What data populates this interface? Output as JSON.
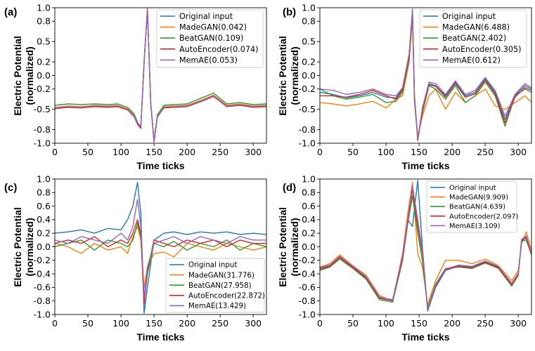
{
  "series_colors": {
    "Original input": "#1f77b4",
    "MadeGAN": "#ff7f0e",
    "BeatGAN": "#2ca02c",
    "AutoEncoder": "#d62728",
    "MemAE": "#9467bd"
  },
  "chart_data": [
    {
      "type": "line",
      "panel_label": "(a)",
      "xlabel": "Time ticks",
      "ylabel_line1": "Electric Potential",
      "ylabel_line2": "(normalized)",
      "xlim": [
        0,
        320
      ],
      "ylim": [
        -1.0,
        1.0
      ],
      "xticks": [
        0,
        50,
        100,
        150,
        200,
        250,
        300
      ],
      "yticks": [
        -1.0,
        -0.8,
        -0.5,
        -0.2,
        0.0,
        0.2,
        0.5,
        0.8,
        1.0
      ],
      "ytick_labels": [
        "-1.0",
        "-0.8",
        "-0.5",
        "-0.2",
        "0.0",
        "0.2",
        "0.5",
        "0.8",
        "1.0"
      ],
      "legend_position": "top-right",
      "x": [
        0,
        20,
        40,
        60,
        80,
        95,
        110,
        120,
        125,
        130,
        135,
        140,
        145,
        150,
        155,
        165,
        180,
        200,
        220,
        240,
        260,
        280,
        300,
        320
      ],
      "series": [
        {
          "name": "Original input",
          "label": "Original input",
          "values": [
            -0.48,
            -0.46,
            -0.47,
            -0.45,
            -0.46,
            -0.45,
            -0.5,
            -0.6,
            -0.7,
            -0.75,
            0.2,
            0.98,
            -0.4,
            -0.97,
            -0.6,
            -0.47,
            -0.46,
            -0.45,
            -0.38,
            -0.3,
            -0.45,
            -0.43,
            -0.46,
            -0.45
          ]
        },
        {
          "name": "MadeGAN",
          "label": "MadeGAN(0.042)",
          "values": [
            -0.47,
            -0.45,
            -0.46,
            -0.44,
            -0.45,
            -0.44,
            -0.49,
            -0.59,
            -0.71,
            -0.76,
            0.21,
            0.99,
            -0.39,
            -0.98,
            -0.62,
            -0.46,
            -0.45,
            -0.44,
            -0.37,
            -0.29,
            -0.44,
            -0.42,
            -0.45,
            -0.44
          ]
        },
        {
          "name": "BeatGAN",
          "label": "BeatGAN(0.109)",
          "values": [
            -0.44,
            -0.42,
            -0.43,
            -0.42,
            -0.43,
            -0.42,
            -0.47,
            -0.57,
            -0.69,
            -0.77,
            0.19,
            0.97,
            -0.42,
            -0.96,
            -0.58,
            -0.44,
            -0.43,
            -0.42,
            -0.34,
            -0.26,
            -0.42,
            -0.4,
            -0.43,
            -0.42
          ]
        },
        {
          "name": "AutoEncoder",
          "label": "AutoEncoder(0.074)",
          "values": [
            -0.49,
            -0.47,
            -0.48,
            -0.46,
            -0.47,
            -0.46,
            -0.51,
            -0.61,
            -0.72,
            -0.78,
            0.2,
            0.98,
            -0.41,
            -0.98,
            -0.61,
            -0.48,
            -0.47,
            -0.46,
            -0.39,
            -0.31,
            -0.46,
            -0.44,
            -0.47,
            -0.46
          ]
        },
        {
          "name": "MemAE",
          "label": "MemAE(0.053)",
          "values": [
            -0.48,
            -0.46,
            -0.47,
            -0.45,
            -0.46,
            -0.45,
            -0.5,
            -0.6,
            -0.7,
            -0.76,
            0.2,
            0.98,
            -0.4,
            -0.97,
            -0.6,
            -0.47,
            -0.46,
            -0.45,
            -0.38,
            -0.3,
            -0.45,
            -0.43,
            -0.46,
            -0.45
          ]
        }
      ]
    },
    {
      "type": "line",
      "panel_label": "(b)",
      "xlabel": "Time ticks",
      "ylabel_line1": "Electric Potential",
      "ylabel_line2": "(normalized)",
      "xlim": [
        0,
        320
      ],
      "ylim": [
        -1.0,
        1.0
      ],
      "xticks": [
        0,
        50,
        100,
        150,
        200,
        250,
        300
      ],
      "yticks": [
        -1.0,
        -0.8,
        -0.5,
        -0.2,
        0.0,
        0.2,
        0.5,
        0.8,
        1.0
      ],
      "ytick_labels": [
        "-1.0",
        "-0.8",
        "-0.5",
        "-0.2",
        "0.0",
        "0.2",
        "0.5",
        "0.8",
        "1.0"
      ],
      "legend_position": "top-right",
      "x": [
        0,
        20,
        40,
        60,
        80,
        100,
        115,
        125,
        135,
        140,
        143,
        148,
        155,
        165,
        175,
        190,
        205,
        220,
        235,
        250,
        265,
        280,
        295,
        310,
        320
      ],
      "series": [
        {
          "name": "Original input",
          "label": "Original input",
          "values": [
            -0.25,
            -0.28,
            -0.33,
            -0.3,
            -0.25,
            -0.32,
            -0.33,
            -0.2,
            0.3,
            0.98,
            -0.3,
            -0.95,
            -0.5,
            -0.12,
            -0.15,
            -0.3,
            -0.1,
            -0.3,
            -0.25,
            -0.05,
            -0.25,
            -0.65,
            -0.3,
            -0.15,
            -0.2
          ]
        },
        {
          "name": "MadeGAN",
          "label": "MadeGAN(6.488)",
          "values": [
            -0.4,
            -0.42,
            -0.45,
            -0.42,
            -0.38,
            -0.48,
            -0.35,
            -0.3,
            0.2,
            0.85,
            -0.4,
            -0.9,
            -0.6,
            -0.3,
            -0.2,
            -0.5,
            -0.25,
            -0.4,
            -0.3,
            -0.2,
            -0.45,
            -0.5,
            -0.4,
            -0.3,
            -0.4
          ]
        },
        {
          "name": "BeatGAN",
          "label": "BeatGAN(2.402)",
          "values": [
            -0.2,
            -0.3,
            -0.35,
            -0.32,
            -0.28,
            -0.4,
            -0.38,
            -0.25,
            0.25,
            0.9,
            -0.35,
            -0.92,
            -0.55,
            -0.15,
            -0.2,
            -0.35,
            -0.15,
            -0.4,
            -0.3,
            -0.1,
            -0.3,
            -0.75,
            -0.3,
            -0.2,
            -0.25
          ]
        },
        {
          "name": "AutoEncoder",
          "label": "AutoEncoder(0.305)",
          "values": [
            -0.3,
            -0.3,
            -0.32,
            -0.28,
            -0.22,
            -0.3,
            -0.35,
            -0.22,
            0.28,
            0.95,
            -0.32,
            -0.96,
            -0.52,
            -0.14,
            -0.16,
            -0.32,
            -0.12,
            -0.32,
            -0.27,
            -0.07,
            -0.27,
            -0.7,
            -0.32,
            -0.18,
            -0.22
          ]
        },
        {
          "name": "MemAE",
          "label": "MemAE(0.612)",
          "values": [
            -0.2,
            -0.22,
            -0.28,
            -0.25,
            -0.2,
            -0.28,
            -0.3,
            -0.18,
            0.32,
            0.97,
            -0.28,
            -0.93,
            -0.48,
            -0.1,
            -0.12,
            -0.28,
            -0.08,
            -0.28,
            -0.22,
            -0.03,
            -0.22,
            -0.6,
            -0.28,
            -0.12,
            -0.18
          ]
        }
      ]
    },
    {
      "type": "line",
      "panel_label": "(c)",
      "xlabel": "Time ticks",
      "ylabel_line1": "Electric Potential",
      "ylabel_line2": "(normalized)",
      "xlim": [
        0,
        320
      ],
      "ylim": [
        -1.0,
        1.0
      ],
      "xticks": [
        0,
        50,
        100,
        150,
        200,
        250,
        300
      ],
      "yticks": [
        -1.0,
        -0.8,
        -0.6,
        -0.4,
        -0.2,
        0.0,
        0.2,
        0.4,
        0.6,
        0.8,
        1.0
      ],
      "ytick_labels": [
        "-1.0",
        "-0.8",
        "-0.6",
        "-0.4",
        "-0.2",
        "0.0",
        "0.2",
        "0.4",
        "0.6",
        "0.8",
        "1.0"
      ],
      "legend_position": "bottom-right",
      "x": [
        0,
        20,
        40,
        60,
        80,
        100,
        110,
        118,
        125,
        130,
        135,
        140,
        150,
        165,
        180,
        200,
        220,
        240,
        260,
        280,
        300,
        320
      ],
      "series": [
        {
          "name": "Original input",
          "label": "Original input",
          "values": [
            0.2,
            0.22,
            0.25,
            0.2,
            0.27,
            0.25,
            0.4,
            0.6,
            0.95,
            0.5,
            -0.98,
            -0.6,
            0.1,
            0.2,
            0.22,
            0.18,
            0.22,
            0.2,
            0.22,
            0.18,
            0.2,
            0.18
          ]
        },
        {
          "name": "MadeGAN",
          "label": "MadeGAN(31.776)",
          "values": [
            0.05,
            0.0,
            -0.1,
            0.05,
            -0.05,
            0.0,
            -0.1,
            0.15,
            0.3,
            0.1,
            -0.6,
            -0.3,
            -0.1,
            -0.08,
            -0.15,
            0.05,
            0.0,
            -0.05,
            0.05,
            0.0,
            -0.05,
            0.0
          ]
        },
        {
          "name": "BeatGAN",
          "label": "BeatGAN(27.958)",
          "values": [
            0.0,
            0.05,
            0.1,
            -0.05,
            0.1,
            0.05,
            0.0,
            0.1,
            0.35,
            0.15,
            -0.8,
            -0.4,
            0.05,
            0.0,
            0.08,
            -0.05,
            0.05,
            0.0,
            0.1,
            -0.05,
            0.05,
            0.0
          ]
        },
        {
          "name": "AutoEncoder",
          "label": "AutoEncoder(22.872)",
          "values": [
            0.05,
            0.1,
            0.05,
            0.15,
            0.0,
            0.1,
            0.05,
            0.2,
            0.4,
            0.2,
            -0.85,
            -0.35,
            0.1,
            0.05,
            0.0,
            0.1,
            0.05,
            0.1,
            0.0,
            0.1,
            0.05,
            0.05
          ]
        },
        {
          "name": "MemAE",
          "label": "MemAE(13.429)",
          "values": [
            0.1,
            0.05,
            0.15,
            0.1,
            0.05,
            0.2,
            0.1,
            0.3,
            0.7,
            0.3,
            -0.75,
            -0.3,
            0.05,
            0.1,
            0.15,
            0.05,
            0.15,
            0.1,
            0.05,
            0.15,
            0.1,
            0.1
          ]
        }
      ]
    },
    {
      "type": "line",
      "panel_label": "(d)",
      "xlabel": "Time ticks",
      "ylabel_line1": "Electric Potential",
      "ylabel_line2": "(normalized)",
      "xlim": [
        0,
        320
      ],
      "ylim": [
        -1.0,
        1.0
      ],
      "xticks": [
        0,
        50,
        100,
        150,
        200,
        250,
        300
      ],
      "yticks": [
        -1.0,
        -0.8,
        -0.6,
        -0.4,
        -0.2,
        0.0,
        0.2,
        0.4,
        0.6,
        0.8,
        1.0
      ],
      "ytick_labels": [
        "-1.0",
        "-0.8",
        "-0.6",
        "-0.4",
        "-0.2",
        "0.0",
        "0.2",
        "0.4",
        "0.6",
        "0.8",
        "1.0"
      ],
      "legend_position": "top-center",
      "x": [
        0,
        15,
        30,
        50,
        70,
        90,
        110,
        125,
        133,
        140,
        148,
        155,
        163,
        175,
        190,
        210,
        230,
        250,
        270,
        290,
        300,
        305,
        312,
        320
      ],
      "series": [
        {
          "name": "Original input",
          "label": "Original input",
          "values": [
            -0.32,
            -0.28,
            -0.15,
            -0.3,
            -0.45,
            -0.75,
            -0.78,
            -0.15,
            0.4,
            0.3,
            0.98,
            0.0,
            -0.95,
            -0.6,
            -0.35,
            -0.28,
            -0.3,
            -0.22,
            -0.3,
            -0.55,
            -0.4,
            0.1,
            0.15,
            -0.1
          ]
        },
        {
          "name": "MadeGAN",
          "label": "MadeGAN(9.909)",
          "values": [
            -0.3,
            -0.25,
            -0.12,
            -0.28,
            -0.42,
            -0.72,
            -0.8,
            -0.1,
            0.5,
            0.95,
            -0.1,
            -0.3,
            -0.85,
            -0.5,
            -0.2,
            -0.2,
            -0.25,
            -0.18,
            -0.28,
            -0.5,
            -0.35,
            0.05,
            0.22,
            -0.05
          ]
        },
        {
          "name": "BeatGAN",
          "label": "BeatGAN(4.639)",
          "values": [
            -0.35,
            -0.3,
            -0.18,
            -0.32,
            -0.48,
            -0.78,
            -0.82,
            -0.2,
            0.35,
            0.75,
            0.2,
            -0.2,
            -0.9,
            -0.55,
            -0.32,
            -0.3,
            -0.32,
            -0.24,
            -0.32,
            -0.58,
            -0.42,
            0.08,
            0.1,
            -0.12
          ]
        },
        {
          "name": "AutoEncoder",
          "label": "AutoEncoder(2.097)",
          "values": [
            -0.33,
            -0.29,
            -0.16,
            -0.31,
            -0.46,
            -0.76,
            -0.8,
            -0.18,
            0.38,
            0.85,
            0.3,
            -0.1,
            -0.92,
            -0.58,
            -0.34,
            -0.29,
            -0.31,
            -0.23,
            -0.31,
            -0.56,
            -0.41,
            0.09,
            0.13,
            -0.11
          ]
        },
        {
          "name": "MemAE",
          "label": "MemAE(3.109)",
          "values": [
            -0.31,
            -0.27,
            -0.14,
            -0.29,
            -0.44,
            -0.74,
            -0.79,
            -0.13,
            0.42,
            0.9,
            0.4,
            -0.05,
            -0.93,
            -0.57,
            -0.33,
            -0.27,
            -0.29,
            -0.21,
            -0.29,
            -0.54,
            -0.39,
            0.11,
            0.16,
            -0.09
          ]
        }
      ]
    }
  ]
}
